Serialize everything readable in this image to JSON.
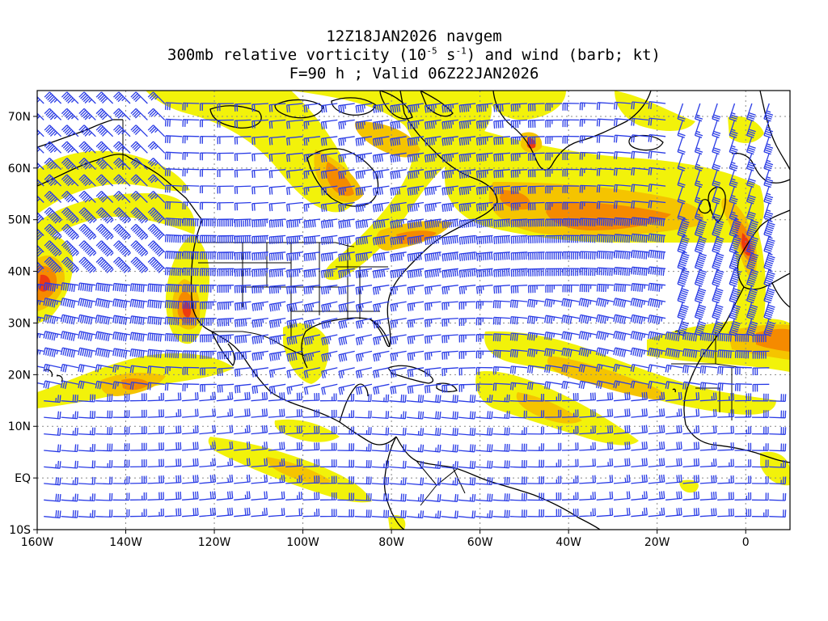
{
  "title": {
    "line1": "12Z18JAN2026 navgem",
    "line2_pre": "300mb relative vorticity (10",
    "line2_exp1": "-5",
    "line2_mid": " s",
    "line2_exp2": "-1",
    "line2_post": ") and wind (barb; kt)",
    "line3": "F=90 h ; Valid 06Z22JAN2026"
  },
  "map": {
    "lon_range": [
      -160,
      10
    ],
    "lat_range": [
      -10,
      75
    ],
    "lat_ticks": [
      {
        "value": 70,
        "label": "70N"
      },
      {
        "value": 60,
        "label": "60N"
      },
      {
        "value": 50,
        "label": "50N"
      },
      {
        "value": 40,
        "label": "40N"
      },
      {
        "value": 30,
        "label": "30N"
      },
      {
        "value": 20,
        "label": "20N"
      },
      {
        "value": 10,
        "label": "10N"
      },
      {
        "value": 0,
        "label": "EQ"
      },
      {
        "value": -10,
        "label": "10S"
      }
    ],
    "lon_ticks": [
      {
        "value": -160,
        "label": "160W"
      },
      {
        "value": -140,
        "label": "140W"
      },
      {
        "value": -120,
        "label": "120W"
      },
      {
        "value": -100,
        "label": "100W"
      },
      {
        "value": -80,
        "label": "80W"
      },
      {
        "value": -60,
        "label": "60W"
      },
      {
        "value": -40,
        "label": "40W"
      },
      {
        "value": -20,
        "label": "20W"
      },
      {
        "value": 0,
        "label": "0"
      }
    ],
    "colors": {
      "low": "#f2f20a",
      "mid": "#f5c400",
      "high": "#f58a00",
      "max": "#ee3a10",
      "barb": "#2a3ce6",
      "coast": "#000000",
      "grid": "#888888"
    }
  }
}
